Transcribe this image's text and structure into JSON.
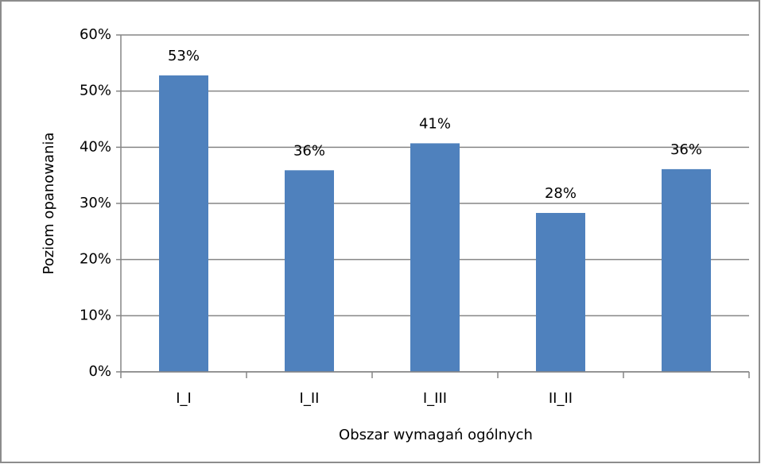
{
  "chart_data": {
    "type": "bar",
    "x_label": "Obszar wymagań ogólnych",
    "y_label": "Poziom opanowania",
    "categories": [
      "I_I",
      "I_II",
      "I_III",
      "II_II",
      null
    ],
    "values": [
      52.8,
      35.9,
      40.7,
      28.3,
      36.1
    ],
    "value_labels": [
      "53%",
      "36%",
      "41%",
      "28%",
      "36%"
    ],
    "color": "#4f81bd",
    "ylim": [
      0,
      60
    ],
    "yticks": [
      {
        "value": 0,
        "label": "0%"
      },
      {
        "value": 10,
        "label": "10%"
      },
      {
        "value": 20,
        "label": "20%"
      },
      {
        "value": 30,
        "label": "30%"
      },
      {
        "value": 40,
        "label": "40%"
      },
      {
        "value": 50,
        "label": "50%"
      },
      {
        "value": 60,
        "label": "60%"
      }
    ],
    "grid": true
  }
}
